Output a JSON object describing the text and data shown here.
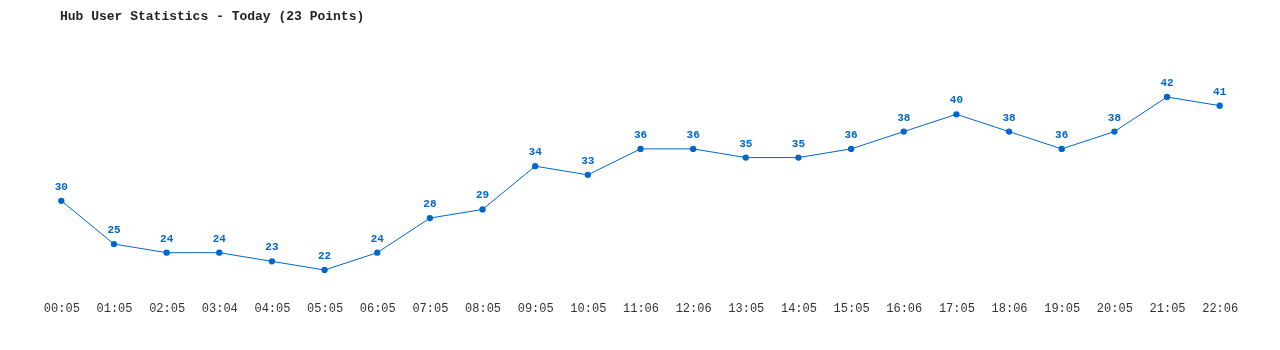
{
  "chart_data": {
    "type": "line",
    "title": "Hub User Statistics - Today (23 Points)",
    "categories": [
      "00:05",
      "01:05",
      "02:05",
      "03:04",
      "04:05",
      "05:05",
      "06:05",
      "07:05",
      "08:05",
      "09:05",
      "10:05",
      "11:06",
      "12:06",
      "13:05",
      "14:05",
      "15:05",
      "16:06",
      "17:05",
      "18:06",
      "19:05",
      "20:05",
      "21:05",
      "22:06"
    ],
    "series": [
      {
        "color": "#0066cc",
        "values": [
          30,
          25,
          24,
          24,
          23,
          22,
          24,
          28,
          29,
          34,
          33,
          36,
          36,
          35,
          35,
          36,
          38,
          40,
          38,
          36,
          38,
          42,
          41
        ]
      }
    ],
    "tick_labels": "x",
    "marker": "circle",
    "line_style": "solid",
    "data_labels": true,
    "grid": false
  }
}
